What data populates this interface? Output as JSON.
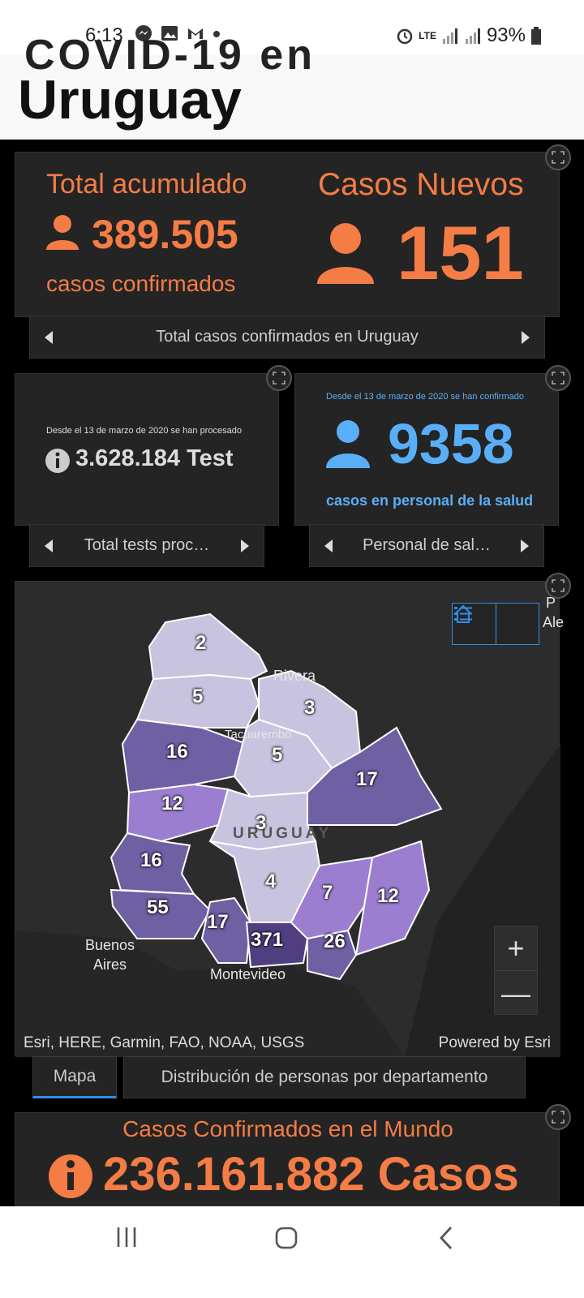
{
  "status_bar": {
    "time": "6:13",
    "network": "LTE",
    "battery": "93%",
    "icons_left": [
      "messenger-icon",
      "image-icon",
      "gmail-icon",
      "dot-icon"
    ],
    "icons_right": [
      "alarm-icon",
      "signal-icon",
      "signal-icon",
      "battery-icon"
    ]
  },
  "header": {
    "ghost_text": "COVID-19 en",
    "title": "Uruguay"
  },
  "card_total": {
    "title": "Total acumulado",
    "value": "389.505",
    "subtitle": "casos confirmados",
    "new_title": "Casos Nuevos",
    "new_value": "151",
    "nav_label": "Total casos confirmados en Uruguay",
    "color": "#f47c45"
  },
  "card_tests": {
    "caption": "Desde el 13 de marzo de 2020 se han procesado",
    "value": "3.628.184 Test",
    "nav_label": "Total tests proc…"
  },
  "card_health": {
    "caption": "Desde el 13 de marzo de 2020 se han confirmado",
    "value": "9358",
    "subtitle": "casos en personal de la salud",
    "nav_label": "Personal de sal…",
    "color": "#5aaef7"
  },
  "map": {
    "labels": {
      "rivera": "Rivera",
      "tacuarembo": "Tacuarembó",
      "country": "URUGUAY",
      "buenos_aires_1": "Buenos",
      "buenos_aires_2": "Aires",
      "montevideo": "Montevideo",
      "porto_alegre_1": "P",
      "porto_alegre_2": "Ale"
    },
    "department_values": {
      "artigas": "2",
      "salto": "5",
      "rivera": "3",
      "tacuarembo": "5",
      "paysandu": "16",
      "cerro_largo": "17",
      "rio_negro": "12",
      "durazno": "3",
      "soriano": "16",
      "florida": "4",
      "colonia": "55",
      "san_jose": "17",
      "montevideo": "371",
      "lavalleja": "7",
      "rocha": "12",
      "maldonado": "26"
    },
    "attribution": "Esri, HERE, Garmin, FAO, NOAA, USGS",
    "powered_by": "Powered by Esri",
    "zoom_in": "+",
    "zoom_out": "—"
  },
  "tabs": [
    {
      "label": "Mapa",
      "active": true
    },
    {
      "label": "Distribución de personas por departamento",
      "active": false
    }
  ],
  "card_world": {
    "title": "Casos Confirmados en el Mundo",
    "value": "236.161.882 Casos"
  }
}
